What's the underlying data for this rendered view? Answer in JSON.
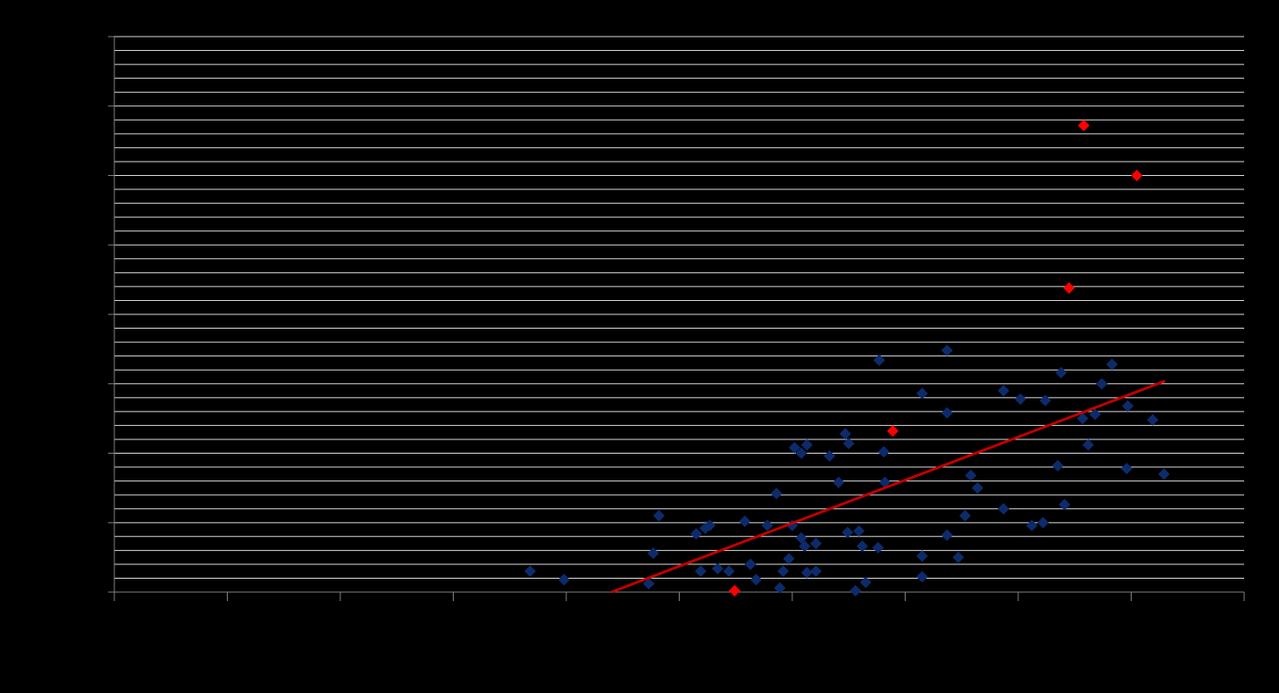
{
  "chart_data": {
    "type": "scatter",
    "xlim": [
      0,
      100
    ],
    "xticks": [
      0,
      10,
      20,
      30,
      40,
      50,
      60,
      70,
      80,
      90,
      100
    ],
    "ylim": [
      0,
      40
    ],
    "yticks": [
      0,
      5,
      10,
      15,
      20,
      25,
      30,
      35,
      40
    ],
    "y_minor_grid": [
      1,
      2,
      3,
      4,
      6,
      7,
      8,
      9,
      11,
      12,
      13,
      14,
      16,
      17,
      18,
      19,
      21,
      22,
      23,
      24,
      26,
      27,
      28,
      29,
      31,
      32,
      33,
      34,
      36,
      37,
      38,
      39
    ],
    "grid": true,
    "grid_color": "#d9d9d9",
    "series": [
      {
        "color": "#0d2b6b",
        "x": [
          36.8,
          39.8,
          48.2,
          47.7,
          47.3,
          51.5,
          52.3,
          52.7,
          51.9,
          53.4,
          54.4,
          55.8,
          56.3,
          56.8,
          57.8,
          58.6,
          58.9,
          59.2,
          59.7,
          60.0,
          60.2,
          60.8,
          61.3,
          60.8,
          61.1,
          62.1,
          61.3,
          62.1,
          63.3,
          64.1,
          64.7,
          65.0,
          64.9,
          65.9,
          66.2,
          65.6,
          66.5,
          67.6,
          67.7,
          68.1,
          68.2,
          71.5,
          71.5,
          71.5,
          73.7,
          73.7,
          73.7,
          74.7,
          75.3,
          75.8,
          76.4,
          78.7,
          78.7,
          80.2,
          81.2,
          82.2,
          82.4,
          83.5,
          83.8,
          84.1,
          85.7,
          86.2,
          86.8,
          87.4,
          88.3,
          89.7,
          89.6,
          91.9,
          92.9
        ],
        "values": [
          1.5,
          0.9,
          5.5,
          2.8,
          0.6,
          4.2,
          4.6,
          4.8,
          1.5,
          1.7,
          1.5,
          5.1,
          2.0,
          0.9,
          4.8,
          7.1,
          0.3,
          1.5,
          2.4,
          4.8,
          10.4,
          10.0,
          10.6,
          3.9,
          3.3,
          3.5,
          1.4,
          1.5,
          9.8,
          7.9,
          11.4,
          10.7,
          4.3,
          4.4,
          3.3,
          0.1,
          0.7,
          3.2,
          16.7,
          10.1,
          7.9,
          14.3,
          2.6,
          1.1,
          17.4,
          12.9,
          4.1,
          2.5,
          5.5,
          8.4,
          7.5,
          14.5,
          6.0,
          13.9,
          4.8,
          5.0,
          13.8,
          9.1,
          15.8,
          6.3,
          12.5,
          10.6,
          12.8,
          15.0,
          16.4,
          13.4,
          8.9,
          12.4,
          8.5
        ]
      },
      {
        "color": "#ff0000",
        "x": [
          85.8,
          90.5,
          84.5,
          68.9,
          54.9
        ],
        "values": [
          33.6,
          30.0,
          21.9,
          11.6,
          0.1
        ]
      }
    ],
    "trendline": {
      "color": "#c00000",
      "x": [
        44.0,
        93.0
      ],
      "values": [
        0,
        15.2
      ]
    }
  }
}
